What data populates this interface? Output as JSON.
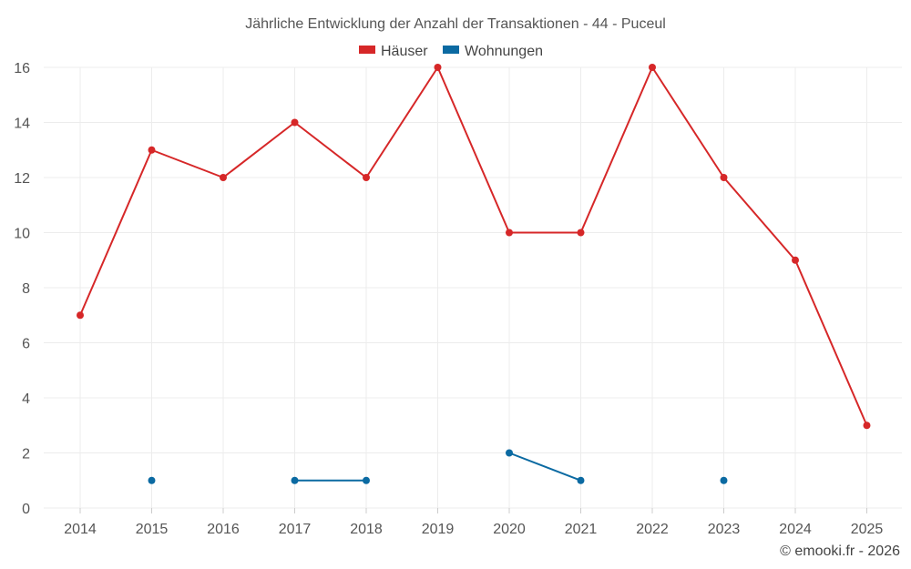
{
  "chart_data": {
    "type": "line",
    "title": "Jährliche Entwicklung der Anzahl der Transaktionen - 44 - Puceul",
    "xlabel": "",
    "ylabel": "",
    "categories": [
      "2014",
      "2015",
      "2016",
      "2017",
      "2018",
      "2019",
      "2020",
      "2021",
      "2022",
      "2023",
      "2024",
      "2025"
    ],
    "ylim": [
      0,
      16
    ],
    "yticks": [
      0,
      2,
      4,
      6,
      8,
      10,
      12,
      14,
      16
    ],
    "grid": true,
    "legend_position": "top-center",
    "series": [
      {
        "name": "Häuser",
        "color": "#d62728",
        "values": [
          7,
          13,
          12,
          14,
          12,
          16,
          10,
          10,
          16,
          12,
          9,
          3
        ]
      },
      {
        "name": "Wohnungen",
        "color": "#0b6aa2",
        "values": [
          null,
          1,
          null,
          1,
          1,
          null,
          2,
          1,
          null,
          1,
          null,
          null
        ]
      }
    ]
  },
  "footer": {
    "credit": "© emooki.fr - 2026"
  }
}
